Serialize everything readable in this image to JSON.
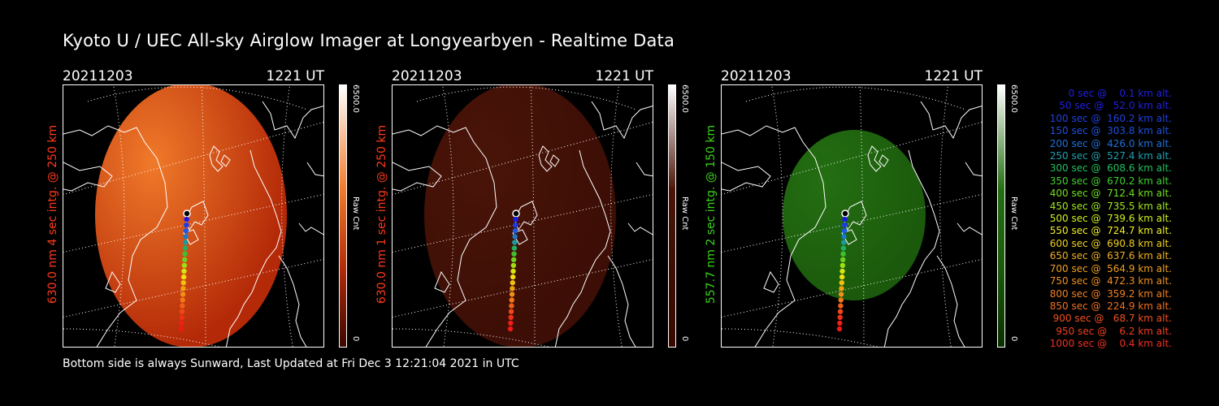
{
  "title": "Kyoto U / UEC All-sky Airglow Imager at Longyearbyen - Realtime Data",
  "footer": "Bottom side is always Sunward, Last Updated at Fri Dec  3 12:21:04 2021 in UTC",
  "panels": [
    {
      "date": "20211203",
      "time": "1221 UT",
      "ylabel": "630.0 nm 4 sec intg. @ 250 km",
      "label_color": "#ff3a1a",
      "cb_max": "6500.0",
      "cb_min": "0",
      "cb_label": "Raw Cnt",
      "image_color": "#b42a08",
      "image_glow": "#f07a2a",
      "cb_top": "#ffffff",
      "cb_bottom": "#3a0800"
    },
    {
      "date": "20211203",
      "time": "1221 UT",
      "ylabel": "630.0 nm 1 sec intg. @ 250 km",
      "label_color": "#ff3a1a",
      "cb_max": "6500.0",
      "cb_min": "0",
      "cb_label": "Raw Cnt",
      "image_color": "#3c0e05",
      "image_glow": "#4a1408",
      "cb_top": "#ffffff",
      "cb_bottom": "#3a0800"
    },
    {
      "date": "20211203",
      "time": "1221 UT",
      "ylabel": "557.7 nm 2 sec intg. @ 150 km",
      "label_color": "#3ad21a",
      "cb_max": "6500.0",
      "cb_min": "0",
      "cb_label": "Raw Cnt",
      "image_color": "#1b5a0c",
      "image_glow": "#246e12",
      "cb_top": "#ffffff",
      "cb_bottom": "#0a3000"
    }
  ],
  "trajectory_colors": [
    "#000000",
    "#1a1ae8",
    "#1a3ae8",
    "#1a5ae8",
    "#1a7ac8",
    "#1a9aa0",
    "#20b060",
    "#40c030",
    "#70d020",
    "#a0e010",
    "#d0e810",
    "#f0e010",
    "#f0c010",
    "#f0a010",
    "#f09018",
    "#f07818",
    "#f06018",
    "#f04818",
    "#f03018",
    "#f02018",
    "#f01818"
  ],
  "legend": [
    {
      "text": "   0 sec @    0.1 km alt.",
      "color": "#2020e0"
    },
    {
      "text": "  50 sec @   52.0 km alt.",
      "color": "#2020e0"
    },
    {
      "text": " 100 sec @  160.2 km alt.",
      "color": "#2040e0"
    },
    {
      "text": " 150 sec @  303.8 km alt.",
      "color": "#2050e0"
    },
    {
      "text": " 200 sec @  426.0 km alt.",
      "color": "#2070d8"
    },
    {
      "text": " 250 sec @  527.4 km alt.",
      "color": "#20a0b0"
    },
    {
      "text": " 300 sec @  608.6 km alt.",
      "color": "#20c060"
    },
    {
      "text": " 350 sec @  670.2 km alt.",
      "color": "#40d030"
    },
    {
      "text": " 400 sec @  712.4 km alt.",
      "color": "#70e020"
    },
    {
      "text": " 450 sec @  735.5 km alt.",
      "color": "#a0e820"
    },
    {
      "text": " 500 sec @  739.6 km alt.",
      "color": "#d0f020"
    },
    {
      "text": " 550 sec @  724.7 km alt.",
      "color": "#f0f020"
    },
    {
      "text": " 600 sec @  690.8 km alt.",
      "color": "#f0d020"
    },
    {
      "text": " 650 sec @  637.6 km alt.",
      "color": "#f0b020"
    },
    {
      "text": " 700 sec @  564.9 km alt.",
      "color": "#f0a020"
    },
    {
      "text": " 750 sec @  472.3 km alt.",
      "color": "#f09020"
    },
    {
      "text": " 800 sec @  359.2 km alt.",
      "color": "#f08020"
    },
    {
      "text": " 850 sec @  224.9 km alt.",
      "color": "#f07020"
    },
    {
      "text": " 900 sec @   68.7 km alt.",
      "color": "#f05020"
    },
    {
      "text": " 950 sec @    6.2 km alt.",
      "color": "#f04020"
    },
    {
      "text": "1000 sec @    0.4 km alt.",
      "color": "#f03020"
    }
  ]
}
